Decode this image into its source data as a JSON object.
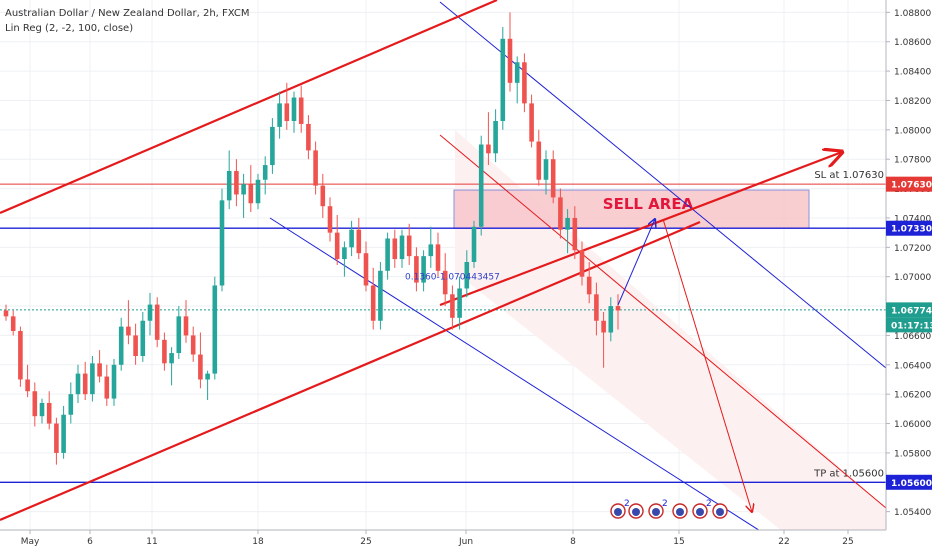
{
  "header": {
    "symbol_line": "Australian Dollar / New Zealand Dollar, 2h, FXCM",
    "indicator_line": "Lin Reg (2, -2, 100, close)"
  },
  "colors": {
    "up_candle": "#26a69a",
    "down_candle": "#ef5350",
    "trend": "#e41a1c",
    "channel": "#1e22d6",
    "sell_zone": "#f8c9cd",
    "price_tag": "#1f9d8e",
    "sl_tag": "#e53935",
    "level_tag": "#1e22d6"
  },
  "chart_data": {
    "type": "candlestick",
    "x_ticks": [
      "May",
      "6",
      "11",
      "18",
      "25",
      "Jun",
      "8",
      "15",
      "22",
      "25"
    ],
    "y_ticks": [
      "1.08800",
      "1.08600",
      "1.08400",
      "1.08200",
      "1.08000",
      "1.07800",
      "1.07600",
      "1.07400",
      "1.07200",
      "1.07000",
      "1.06800",
      "1.06600",
      "1.06400",
      "1.06200",
      "1.06000",
      "1.05800",
      "1.05600",
      "1.05400"
    ],
    "ylim": [
      1.0535,
      1.0885
    ],
    "price_tags": [
      {
        "id": "sl",
        "value": 1.0763,
        "label": "1.07630",
        "kind": "sl"
      },
      {
        "id": "entry",
        "value": 1.0733,
        "label": "1.07330",
        "kind": "level"
      },
      {
        "id": "last",
        "value": 1.06774,
        "label": "1.06774",
        "kind": "price"
      },
      {
        "id": "timer",
        "value": 1.0669,
        "label": "01:17:13",
        "kind": "price"
      },
      {
        "id": "tp",
        "value": 1.056,
        "label": "1.05600",
        "kind": "level"
      }
    ],
    "annotations": {
      "sell_area": "SELL AREA",
      "stop_loss": "SL at 1.07630",
      "take_profit": "TP at 1.05600",
      "fib_label": "0.1360-1.070443457"
    },
    "event_markers": [
      "2",
      "2",
      "2"
    ],
    "trend_lines": [
      {
        "id": "upper-red-trend",
        "from": [
          "May",
          1.074
        ],
        "to": [
          "Jun",
          1.0882
        ]
      },
      {
        "id": "lower-red-trend",
        "from": [
          "May",
          1.0541
        ],
        "to": [
          "Jun 15",
          1.0735
        ]
      },
      {
        "id": "red-arrow-line",
        "from": [
          "May",
          1.0677
        ],
        "to": [
          "Jun 25",
          1.0775
        ]
      }
    ],
    "candles": [
      [
        1.0677,
        1.0681,
        1.067,
        1.0673
      ],
      [
        1.0673,
        1.0677,
        1.066,
        1.0663
      ],
      [
        1.0663,
        1.0666,
        1.0625,
        1.063
      ],
      [
        1.063,
        1.064,
        1.0618,
        1.0622
      ],
      [
        1.0622,
        1.0628,
        1.0598,
        1.0605
      ],
      [
        1.0605,
        1.0617,
        1.06,
        1.0614
      ],
      [
        1.0614,
        1.0622,
        1.0596,
        1.06
      ],
      [
        1.06,
        1.0604,
        1.0572,
        1.058
      ],
      [
        1.058,
        1.0612,
        1.0576,
        1.0606
      ],
      [
        1.0606,
        1.0628,
        1.06,
        1.062
      ],
      [
        1.062,
        1.064,
        1.0614,
        1.0634
      ],
      [
        1.0634,
        1.0642,
        1.0616,
        1.062
      ],
      [
        1.062,
        1.0646,
        1.0615,
        1.0641
      ],
      [
        1.0641,
        1.065,
        1.0628,
        1.0632
      ],
      [
        1.0632,
        1.064,
        1.0612,
        1.0617
      ],
      [
        1.0617,
        1.0644,
        1.0612,
        1.064
      ],
      [
        1.064,
        1.0672,
        1.0636,
        1.0666
      ],
      [
        1.0666,
        1.0684,
        1.0654,
        1.066
      ],
      [
        1.066,
        1.0668,
        1.064,
        1.0646
      ],
      [
        1.0646,
        1.0676,
        1.0642,
        1.067
      ],
      [
        1.067,
        1.0689,
        1.066,
        1.0681
      ],
      [
        1.0681,
        1.0686,
        1.0652,
        1.0657
      ],
      [
        1.0657,
        1.0662,
        1.0636,
        1.0641
      ],
      [
        1.0641,
        1.0652,
        1.0626,
        1.0648
      ],
      [
        1.0648,
        1.068,
        1.0644,
        1.0673
      ],
      [
        1.0673,
        1.0684,
        1.0655,
        1.066
      ],
      [
        1.066,
        1.0666,
        1.0642,
        1.0647
      ],
      [
        1.0647,
        1.0662,
        1.0624,
        1.063
      ],
      [
        1.063,
        1.0636,
        1.0616,
        1.0634
      ],
      [
        1.0634,
        1.07,
        1.063,
        1.0694
      ],
      [
        1.0694,
        1.076,
        1.069,
        1.0752
      ],
      [
        1.0752,
        1.0786,
        1.0746,
        1.0772
      ],
      [
        1.0772,
        1.078,
        1.0748,
        1.0756
      ],
      [
        1.0756,
        1.077,
        1.074,
        1.0763
      ],
      [
        1.0763,
        1.0776,
        1.0744,
        1.075
      ],
      [
        1.075,
        1.077,
        1.0746,
        1.0766
      ],
      [
        1.0766,
        1.0782,
        1.0756,
        1.0776
      ],
      [
        1.0776,
        1.0808,
        1.077,
        1.0802
      ],
      [
        1.0802,
        1.0826,
        1.0794,
        1.0818
      ],
      [
        1.0818,
        1.0832,
        1.08,
        1.0806
      ],
      [
        1.0806,
        1.0826,
        1.0798,
        1.0822
      ],
      [
        1.0822,
        1.083,
        1.0798,
        1.0804
      ],
      [
        1.0804,
        1.081,
        1.078,
        1.0786
      ],
      [
        1.0786,
        1.0792,
        1.0756,
        1.0762
      ],
      [
        1.0762,
        1.077,
        1.074,
        1.0748
      ],
      [
        1.0748,
        1.0754,
        1.0724,
        1.073
      ],
      [
        1.073,
        1.0742,
        1.0708,
        1.0712
      ],
      [
        1.0712,
        1.0724,
        1.07,
        1.072
      ],
      [
        1.072,
        1.0738,
        1.0714,
        1.0732
      ],
      [
        1.0732,
        1.074,
        1.0712,
        1.0716
      ],
      [
        1.0716,
        1.0724,
        1.069,
        1.0694
      ],
      [
        1.0694,
        1.0706,
        1.0664,
        1.067
      ],
      [
        1.067,
        1.071,
        1.0664,
        1.0704
      ],
      [
        1.0704,
        1.073,
        1.0698,
        1.0726
      ],
      [
        1.0726,
        1.0732,
        1.0706,
        1.0712
      ],
      [
        1.0712,
        1.0732,
        1.0706,
        1.0728
      ],
      [
        1.0728,
        1.0736,
        1.0708,
        1.0714
      ],
      [
        1.0714,
        1.072,
        1.069,
        1.0696
      ],
      [
        1.0696,
        1.0718,
        1.069,
        1.0714
      ],
      [
        1.0714,
        1.0734,
        1.0706,
        1.0722
      ],
      [
        1.0722,
        1.073,
        1.07,
        1.0704
      ],
      [
        1.0704,
        1.0716,
        1.068,
        1.0688
      ],
      [
        1.0688,
        1.0694,
        1.0664,
        1.0672
      ],
      [
        1.0672,
        1.07,
        1.0664,
        1.0692
      ],
      [
        1.0692,
        1.0718,
        1.0686,
        1.071
      ],
      [
        1.071,
        1.0738,
        1.0706,
        1.0734
      ],
      [
        1.0734,
        1.0796,
        1.0728,
        1.079
      ],
      [
        1.079,
        1.0812,
        1.0776,
        1.0784
      ],
      [
        1.0784,
        1.0814,
        1.0778,
        1.0806
      ],
      [
        1.0806,
        1.087,
        1.08,
        1.0862
      ],
      [
        1.0862,
        1.088,
        1.0826,
        1.0832
      ],
      [
        1.0832,
        1.085,
        1.0818,
        1.0846
      ],
      [
        1.0846,
        1.0852,
        1.0812,
        1.0818
      ],
      [
        1.0818,
        1.0824,
        1.0788,
        1.0792
      ],
      [
        1.0792,
        1.08,
        1.0762,
        1.0766
      ],
      [
        1.0766,
        1.0786,
        1.0756,
        1.078
      ],
      [
        1.078,
        1.0786,
        1.075,
        1.0754
      ],
      [
        1.0754,
        1.076,
        1.0726,
        1.0732
      ],
      [
        1.0732,
        1.0746,
        1.0716,
        1.074
      ],
      [
        1.074,
        1.0748,
        1.0712,
        1.0718
      ],
      [
        1.0718,
        1.0724,
        1.0694,
        1.07
      ],
      [
        1.07,
        1.071,
        1.0682,
        1.0688
      ],
      [
        1.0688,
        1.0696,
        1.066,
        1.067
      ],
      [
        1.067,
        1.0676,
        1.0638,
        1.0662
      ],
      [
        1.0662,
        1.0686,
        1.0656,
        1.068
      ],
      [
        1.068,
        1.0688,
        1.0664,
        1.0677
      ]
    ]
  }
}
